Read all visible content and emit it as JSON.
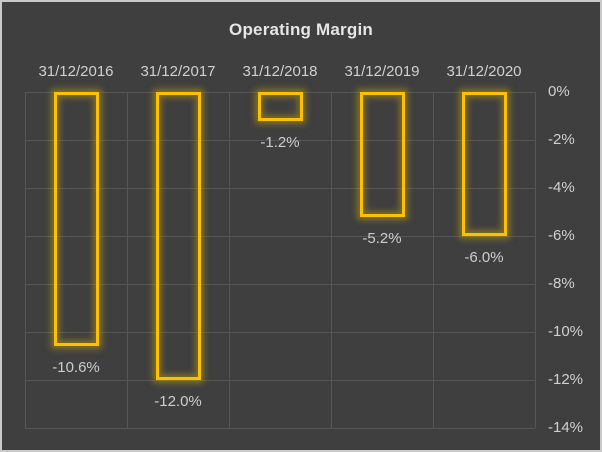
{
  "chart_data": {
    "type": "bar",
    "title": "Operating Margin",
    "categories": [
      "31/12/2016",
      "31/12/2017",
      "31/12/2018",
      "31/12/2019",
      "31/12/2020"
    ],
    "values": [
      -10.6,
      -12.0,
      -1.2,
      -5.2,
      -6.0
    ],
    "value_labels": [
      "-10.6%",
      "-12.0%",
      "-1.2%",
      "-5.2%",
      "-6.0%"
    ],
    "y_ticks": [
      "0%",
      "-2%",
      "-4%",
      "-6%",
      "-8%",
      "-10%",
      "-12%",
      "-14%"
    ],
    "y_tick_values": [
      0,
      -2,
      -4,
      -6,
      -8,
      -10,
      -12,
      -14
    ],
    "ylim": [
      -14,
      0
    ],
    "xlabel": "",
    "ylabel": "",
    "grid": true,
    "legend": "none",
    "axis_side": "right",
    "bar_style": "hollow-outline-glow",
    "colors": {
      "background": "#3f3f3f",
      "bar_outline": "#ffc000",
      "gridline": "#565656",
      "text": "#d0d0d0",
      "title_text": "#e6e6e6",
      "frame_border": "#c9c9c9"
    }
  }
}
